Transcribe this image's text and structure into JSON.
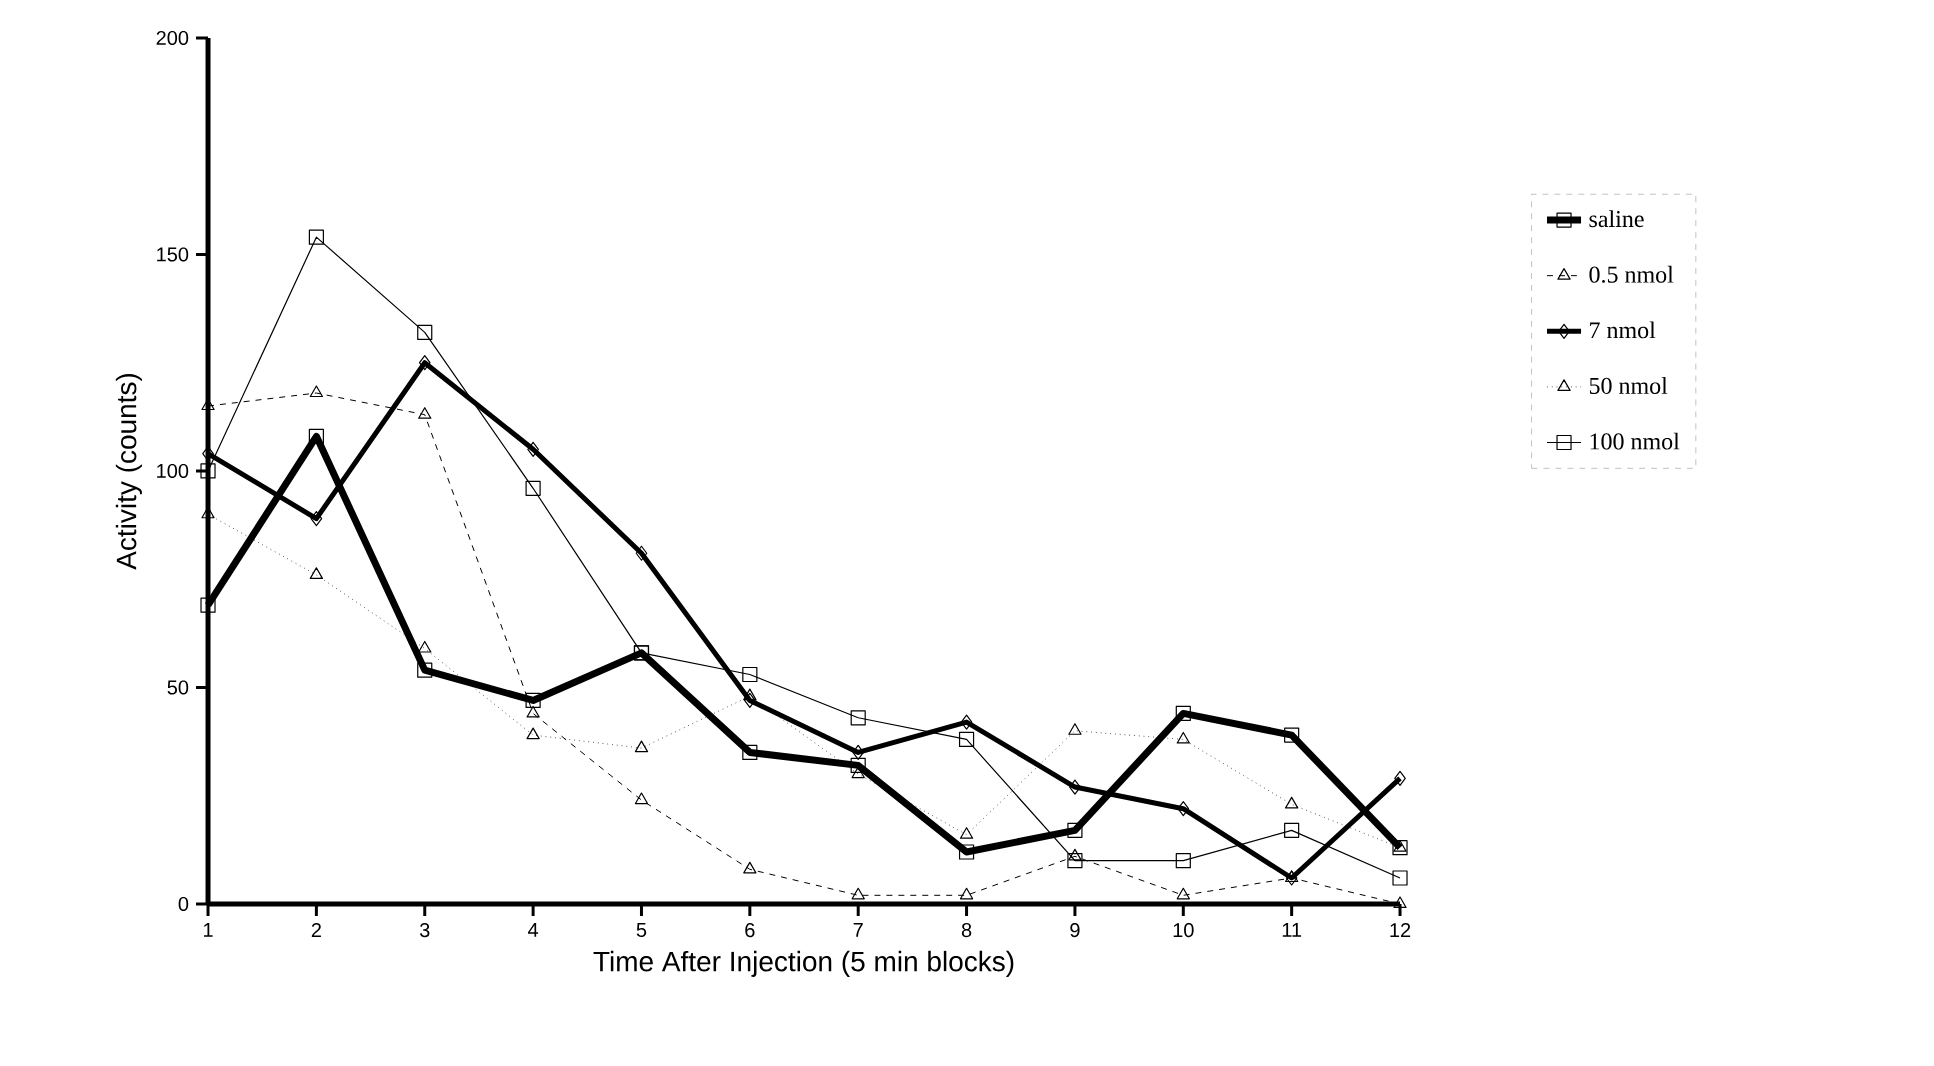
{
  "chart_data": {
    "type": "line",
    "xlabel": "Time After Injection (5 min blocks)",
    "ylabel": "Activity (counts)",
    "x": [
      1,
      2,
      3,
      4,
      5,
      6,
      7,
      8,
      9,
      10,
      11,
      12
    ],
    "xlim": [
      1,
      12
    ],
    "xticks": [
      1,
      2,
      3,
      4,
      5,
      6,
      7,
      8,
      9,
      10,
      11,
      12
    ],
    "ylim": [
      0,
      200
    ],
    "yticks": [
      0,
      50,
      100,
      150,
      200
    ],
    "grid": false,
    "legend": "right",
    "series": [
      {
        "name": "saline",
        "color": "#000000",
        "marker": "square",
        "line_style": "solid",
        "values": [
          69,
          108,
          54,
          47,
          58,
          35,
          32,
          12,
          17,
          44,
          39,
          13
        ]
      },
      {
        "name": "0.5  nmol",
        "color": "#000000",
        "marker": "triangle",
        "line_style": "dashed",
        "values": [
          115,
          118,
          113,
          44,
          24,
          8,
          2,
          2,
          11,
          2,
          6,
          0
        ]
      },
      {
        "name": "7  nmol",
        "color": "#000000",
        "marker": "diamond",
        "line_style": "solid",
        "values": [
          104,
          89,
          125,
          105,
          81,
          47,
          35,
          42,
          27,
          22,
          6,
          29
        ]
      },
      {
        "name": "50  nmol",
        "color": "#000000",
        "marker": "triangle",
        "line_style": "dotted",
        "values": [
          90,
          76,
          59,
          39,
          36,
          48,
          30,
          16,
          40,
          38,
          23,
          13
        ]
      },
      {
        "name": "100 nmol",
        "color": "#000000",
        "marker": "square",
        "line_style": "solid",
        "values": [
          100,
          154,
          132,
          96,
          58,
          53,
          43,
          38,
          10,
          10,
          17,
          6
        ]
      }
    ]
  }
}
